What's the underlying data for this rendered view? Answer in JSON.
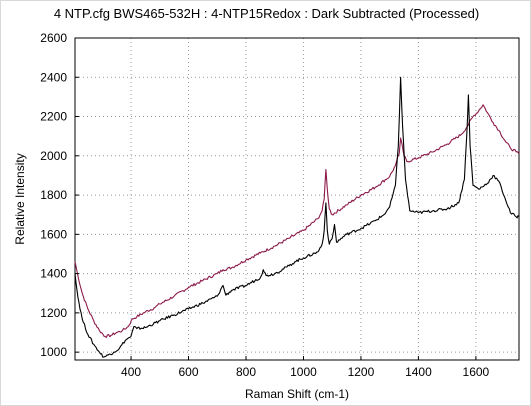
{
  "chart_data": {
    "type": "line",
    "title": "4 NTP.cfg   BWS465-532H : 4-NTP15Redox : Dark Subtracted (Processed)",
    "xlabel": "Raman Shift (cm-1)",
    "ylabel": "Relative Intensity",
    "xlim": [
      205,
      1750
    ],
    "ylim": [
      960,
      2600
    ],
    "x_ticks": [
      400,
      600,
      800,
      1000,
      1200,
      1400,
      1600
    ],
    "y_ticks": [
      1000,
      1200,
      1400,
      1600,
      1800,
      2000,
      2200,
      2400,
      2600
    ],
    "grid": true,
    "legend": "none",
    "series": [
      {
        "color": "#8b1a4a",
        "points": [
          [
            205,
            1460
          ],
          [
            215,
            1390
          ],
          [
            230,
            1300
          ],
          [
            250,
            1220
          ],
          [
            270,
            1160
          ],
          [
            290,
            1110
          ],
          [
            310,
            1080
          ],
          [
            330,
            1085
          ],
          [
            350,
            1100
          ],
          [
            370,
            1110
          ],
          [
            390,
            1130
          ],
          [
            405,
            1170
          ],
          [
            420,
            1180
          ],
          [
            450,
            1205
          ],
          [
            480,
            1225
          ],
          [
            500,
            1245
          ],
          [
            550,
            1285
          ],
          [
            600,
            1330
          ],
          [
            650,
            1365
          ],
          [
            700,
            1400
          ],
          [
            720,
            1420
          ],
          [
            750,
            1430
          ],
          [
            800,
            1470
          ],
          [
            850,
            1505
          ],
          [
            900,
            1540
          ],
          [
            950,
            1580
          ],
          [
            1000,
            1620
          ],
          [
            1050,
            1680
          ],
          [
            1065,
            1720
          ],
          [
            1072,
            1780
          ],
          [
            1078,
            1930
          ],
          [
            1083,
            1830
          ],
          [
            1090,
            1730
          ],
          [
            1100,
            1700
          ],
          [
            1150,
            1750
          ],
          [
            1200,
            1800
          ],
          [
            1250,
            1840
          ],
          [
            1300,
            1895
          ],
          [
            1320,
            1950
          ],
          [
            1333,
            2010
          ],
          [
            1338,
            2090
          ],
          [
            1343,
            2060
          ],
          [
            1350,
            2000
          ],
          [
            1360,
            1970
          ],
          [
            1400,
            1990
          ],
          [
            1450,
            2020
          ],
          [
            1500,
            2060
          ],
          [
            1550,
            2110
          ],
          [
            1570,
            2150
          ],
          [
            1590,
            2200
          ],
          [
            1610,
            2230
          ],
          [
            1625,
            2260
          ],
          [
            1640,
            2220
          ],
          [
            1660,
            2170
          ],
          [
            1680,
            2130
          ],
          [
            1700,
            2080
          ],
          [
            1720,
            2040
          ],
          [
            1740,
            2020
          ],
          [
            1750,
            2010
          ]
        ]
      },
      {
        "color": "#000000",
        "points": [
          [
            205,
            1400
          ],
          [
            215,
            1280
          ],
          [
            230,
            1170
          ],
          [
            250,
            1090
          ],
          [
            270,
            1040
          ],
          [
            290,
            1000
          ],
          [
            305,
            975
          ],
          [
            320,
            985
          ],
          [
            340,
            1000
          ],
          [
            360,
            1020
          ],
          [
            380,
            1060
          ],
          [
            400,
            1080
          ],
          [
            410,
            1130
          ],
          [
            420,
            1120
          ],
          [
            450,
            1125
          ],
          [
            500,
            1160
          ],
          [
            550,
            1190
          ],
          [
            600,
            1220
          ],
          [
            650,
            1250
          ],
          [
            700,
            1285
          ],
          [
            720,
            1340
          ],
          [
            730,
            1290
          ],
          [
            750,
            1315
          ],
          [
            800,
            1340
          ],
          [
            850,
            1380
          ],
          [
            860,
            1420
          ],
          [
            870,
            1390
          ],
          [
            900,
            1400
          ],
          [
            950,
            1440
          ],
          [
            970,
            1460
          ],
          [
            1000,
            1480
          ],
          [
            1050,
            1510
          ],
          [
            1065,
            1550
          ],
          [
            1072,
            1620
          ],
          [
            1078,
            1760
          ],
          [
            1083,
            1620
          ],
          [
            1090,
            1550
          ],
          [
            1100,
            1580
          ],
          [
            1108,
            1650
          ],
          [
            1115,
            1560
          ],
          [
            1150,
            1600
          ],
          [
            1200,
            1630
          ],
          [
            1250,
            1670
          ],
          [
            1280,
            1700
          ],
          [
            1300,
            1740
          ],
          [
            1320,
            1850
          ],
          [
            1330,
            2050
          ],
          [
            1338,
            2400
          ],
          [
            1345,
            2150
          ],
          [
            1355,
            1880
          ],
          [
            1370,
            1720
          ],
          [
            1400,
            1710
          ],
          [
            1450,
            1720
          ],
          [
            1500,
            1730
          ],
          [
            1540,
            1760
          ],
          [
            1560,
            1880
          ],
          [
            1568,
            2100
          ],
          [
            1574,
            2310
          ],
          [
            1580,
            2050
          ],
          [
            1590,
            1850
          ],
          [
            1610,
            1830
          ],
          [
            1640,
            1860
          ],
          [
            1660,
            1900
          ],
          [
            1680,
            1870
          ],
          [
            1700,
            1790
          ],
          [
            1720,
            1710
          ],
          [
            1740,
            1690
          ],
          [
            1750,
            1690
          ]
        ]
      }
    ]
  }
}
